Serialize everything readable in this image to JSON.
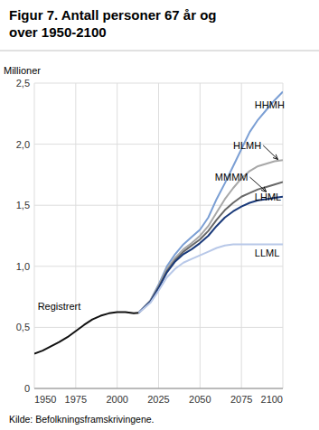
{
  "chart_data": {
    "type": "line",
    "title": "Figur 7. Antall personer 67 år og\nover 1950-2100",
    "y_label": "Millioner",
    "source": "Kilde: Befolkningsframskrivingene.",
    "xlim": [
      1950,
      2100
    ],
    "xticks": [
      1950,
      1975,
      2000,
      2025,
      2050,
      2075,
      2100
    ],
    "ylim": [
      0,
      2.5
    ],
    "yticks": [
      0,
      {
        "value": 0.5,
        "label": "0,5"
      },
      {
        "value": 1.0,
        "label": "1,0"
      },
      {
        "value": 1.5,
        "label": "1,5"
      },
      {
        "value": 2.0,
        "label": "2,0"
      },
      {
        "value": 2.5,
        "label": "2,5"
      }
    ],
    "grid": true,
    "series": [
      {
        "name": "Registrert",
        "color": "#111111",
        "x": [
          1950,
          1955,
          1960,
          1965,
          1970,
          1975,
          1980,
          1985,
          1990,
          1995,
          2000,
          2005,
          2010,
          2013
        ],
        "values": [
          0.285,
          0.31,
          0.345,
          0.38,
          0.42,
          0.47,
          0.52,
          0.565,
          0.595,
          0.615,
          0.625,
          0.625,
          0.615,
          0.62
        ]
      },
      {
        "name": "HHMH",
        "color": "#7b9fd4",
        "x": [
          2013,
          2020,
          2025,
          2030,
          2035,
          2040,
          2045,
          2050,
          2055,
          2060,
          2065,
          2070,
          2075,
          2080,
          2085,
          2090,
          2095,
          2100
        ],
        "values": [
          0.62,
          0.72,
          0.85,
          1.0,
          1.1,
          1.18,
          1.24,
          1.3,
          1.4,
          1.55,
          1.68,
          1.82,
          1.96,
          2.1,
          2.2,
          2.28,
          2.36,
          2.43
        ]
      },
      {
        "name": "HLMH",
        "color": "#a8a8a8",
        "x": [
          2013,
          2020,
          2025,
          2030,
          2035,
          2040,
          2045,
          2050,
          2055,
          2060,
          2065,
          2070,
          2075,
          2080,
          2085,
          2090,
          2095,
          2100
        ],
        "values": [
          0.62,
          0.72,
          0.84,
          0.98,
          1.07,
          1.14,
          1.19,
          1.25,
          1.33,
          1.44,
          1.55,
          1.64,
          1.72,
          1.78,
          1.82,
          1.84,
          1.86,
          1.87
        ]
      },
      {
        "name": "MMMM",
        "color": "#686868",
        "x": [
          2013,
          2020,
          2025,
          2030,
          2035,
          2040,
          2045,
          2050,
          2055,
          2060,
          2065,
          2070,
          2075,
          2080,
          2085,
          2090,
          2095,
          2100
        ],
        "values": [
          0.62,
          0.71,
          0.83,
          0.96,
          1.05,
          1.12,
          1.17,
          1.22,
          1.29,
          1.38,
          1.46,
          1.52,
          1.57,
          1.6,
          1.63,
          1.65,
          1.67,
          1.69
        ]
      },
      {
        "name": "LHML",
        "color": "#1a3a7a",
        "x": [
          2013,
          2020,
          2025,
          2030,
          2035,
          2040,
          2045,
          2050,
          2055,
          2060,
          2065,
          2070,
          2075,
          2080,
          2085,
          2090,
          2095,
          2100
        ],
        "values": [
          0.62,
          0.71,
          0.82,
          0.95,
          1.04,
          1.1,
          1.14,
          1.19,
          1.25,
          1.33,
          1.4,
          1.45,
          1.49,
          1.52,
          1.54,
          1.55,
          1.56,
          1.57
        ]
      },
      {
        "name": "LLML",
        "color": "#b8c8e8",
        "x": [
          2013,
          2020,
          2025,
          2030,
          2035,
          2040,
          2045,
          2050,
          2055,
          2060,
          2065,
          2070,
          2075,
          2080,
          2085,
          2090,
          2095,
          2100
        ],
        "values": [
          0.62,
          0.7,
          0.8,
          0.91,
          0.98,
          1.03,
          1.06,
          1.09,
          1.12,
          1.15,
          1.17,
          1.18,
          1.18,
          1.18,
          1.18,
          1.18,
          1.18,
          1.18
        ]
      }
    ],
    "annotations": [
      {
        "text": "Registrert",
        "x": 1952,
        "y": 0.67
      },
      {
        "text": "HHMH",
        "x": 2083,
        "y": 2.32
      },
      {
        "text": "HLMH",
        "x": 2070,
        "y": 1.99,
        "arrow_to": [
          2097,
          1.875
        ]
      },
      {
        "text": "MMMM",
        "x": 2059,
        "y": 1.73,
        "arrow_to": [
          2090,
          1.61
        ]
      },
      {
        "text": "LHML",
        "x": 2083,
        "y": 1.565
      },
      {
        "text": "LLML",
        "x": 2083,
        "y": 1.11
      }
    ]
  }
}
